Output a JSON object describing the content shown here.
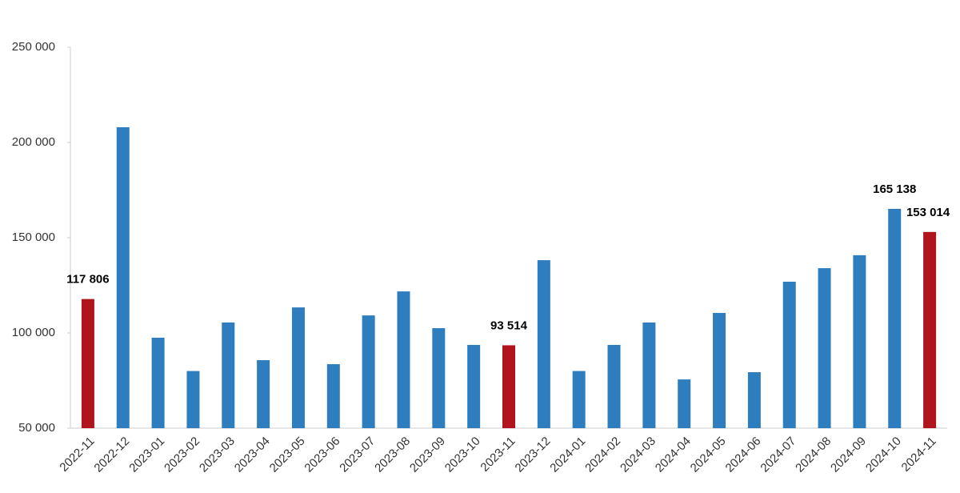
{
  "chart_data": {
    "type": "bar",
    "categories": [
      "2022-11",
      "2022-12",
      "2023-01",
      "2023-02",
      "2023-03",
      "2023-04",
      "2023-05",
      "2023-06",
      "2023-07",
      "2023-08",
      "2023-09",
      "2023-10",
      "2023-11",
      "2023-12",
      "2024-01",
      "2024-02",
      "2024-03",
      "2024-04",
      "2024-05",
      "2024-06",
      "2024-07",
      "2024-08",
      "2024-09",
      "2024-10",
      "2024-11"
    ],
    "values": [
      117806,
      208000,
      97500,
      80000,
      105500,
      85700,
      113400,
      83600,
      109200,
      121800,
      102500,
      93700,
      93514,
      138200,
      80000,
      93700,
      105500,
      75600,
      110500,
      79400,
      126900,
      134000,
      140800,
      165138,
      153014
    ],
    "value_labels": [
      "117 806",
      null,
      null,
      null,
      null,
      null,
      null,
      null,
      null,
      null,
      null,
      null,
      "93 514",
      null,
      null,
      null,
      null,
      null,
      null,
      null,
      null,
      null,
      null,
      "165 138",
      "153 014"
    ],
    "colors": [
      "#b0141c",
      "#2e7ebf",
      "#2e7ebf",
      "#2e7ebf",
      "#2e7ebf",
      "#2e7ebf",
      "#2e7ebf",
      "#2e7ebf",
      "#2e7ebf",
      "#2e7ebf",
      "#2e7ebf",
      "#2e7ebf",
      "#b0141c",
      "#2e7ebf",
      "#2e7ebf",
      "#2e7ebf",
      "#2e7ebf",
      "#2e7ebf",
      "#2e7ebf",
      "#2e7ebf",
      "#2e7ebf",
      "#2e7ebf",
      "#2e7ebf",
      "#2e7ebf",
      "#b0141c"
    ],
    "ylim": [
      50000,
      250000
    ],
    "yticks": [
      {
        "value": 50000,
        "label": "50 000"
      },
      {
        "value": 100000,
        "label": "100 000"
      },
      {
        "value": 150000,
        "label": "150 000"
      },
      {
        "value": 200000,
        "label": "200 000"
      },
      {
        "value": 250000,
        "label": "250 000"
      }
    ],
    "grid": false
  }
}
